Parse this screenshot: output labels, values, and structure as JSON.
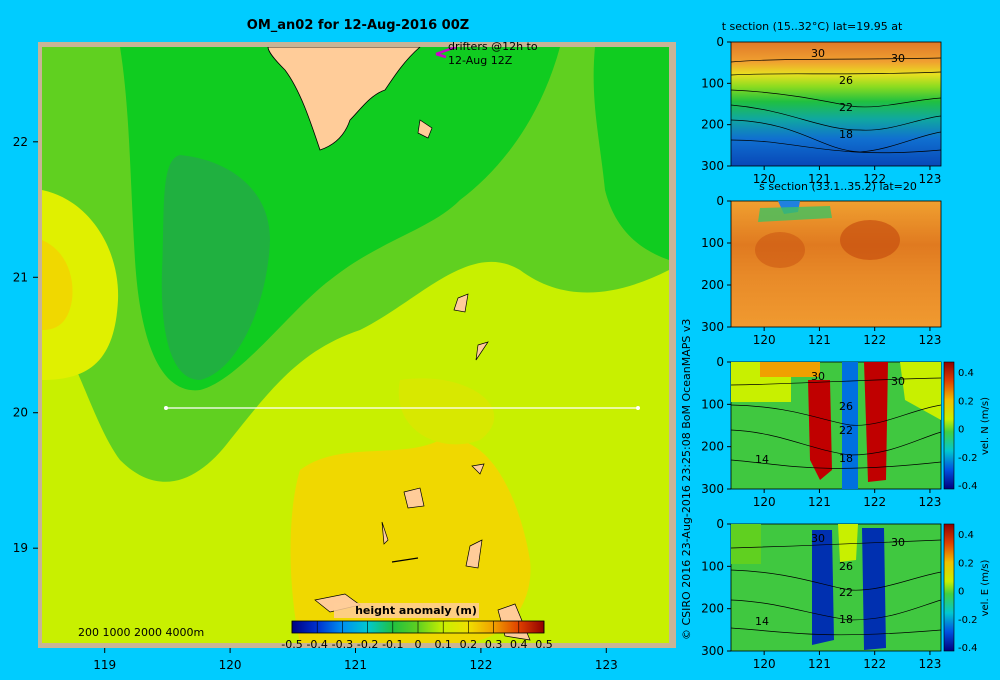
{
  "main_map": {
    "title": "OM_an02 for 12-Aug-2016 00Z",
    "drifters_note": [
      "drifters @12h to",
      "12-Aug 12Z"
    ],
    "depth_legend": "200  1000  2000  4000m",
    "colorbar_label": "height anomaly (m)",
    "colorbar_ticks": [
      "-0.5",
      "-0.4",
      "-0.3",
      "-0.2",
      "-0.1",
      "0",
      "0.1",
      "0.2",
      "0.3",
      "0.4",
      "0.5"
    ],
    "colors": {
      "land": "#ffcc99",
      "shelf": "#c8b496",
      "frame": "#c8b496"
    }
  },
  "credit": "© CSIRO 2016   23-Aug-2016 23:25:08 BoM OceanMAPS v3",
  "chart_data": [
    {
      "type": "heatmap",
      "title": "OM_an02 for 12-Aug-2016 00Z",
      "x": {
        "ticks": [
          119,
          120,
          121,
          122,
          123
        ],
        "range": [
          118.5,
          123.5
        ]
      },
      "y": {
        "ticks": [
          19,
          20,
          21,
          22
        ],
        "range": [
          18.3,
          22.7
        ]
      },
      "section_line": {
        "lat": 20,
        "lon_start": 119.5,
        "lon_end": 123.2
      },
      "colorbar": {
        "label": "height anomaly (m)",
        "range": [
          -0.5,
          0.5
        ]
      }
    },
    {
      "type": "heatmap",
      "title": "t section (15..32°C) lat=19.95 at",
      "x": {
        "ticks": [
          120,
          121,
          122,
          123
        ],
        "range": [
          119.4,
          123.2
        ]
      },
      "y": {
        "ticks": [
          0,
          100,
          200,
          300
        ],
        "range": [
          0,
          300
        ]
      },
      "contour_labels": [
        "30",
        "30",
        "26",
        "22",
        "18"
      ]
    },
    {
      "type": "heatmap",
      "title": "s section (33.1..35.2) lat=20",
      "x": {
        "ticks": [
          120,
          121,
          122,
          123
        ],
        "range": [
          119.4,
          123.2
        ]
      },
      "y": {
        "ticks": [
          0,
          100,
          200,
          300
        ],
        "range": [
          0,
          300
        ]
      }
    },
    {
      "type": "heatmap",
      "title": "",
      "x": {
        "ticks": [
          120,
          121,
          122,
          123
        ],
        "range": [
          119.4,
          123.2
        ]
      },
      "y": {
        "ticks": [
          0,
          100,
          200,
          300
        ],
        "range": [
          0,
          300
        ]
      },
      "contour_labels": [
        "30",
        "30",
        "26",
        "22",
        "14",
        "18"
      ],
      "colorbar": {
        "label": "vel. N (m/s)",
        "ticks": [
          "0.4",
          "0.2",
          "0",
          "-0.2",
          "-0.4"
        ],
        "range": [
          -0.4,
          0.4
        ]
      }
    },
    {
      "type": "heatmap",
      "title": "",
      "x": {
        "ticks": [
          120,
          121,
          122,
          123
        ],
        "range": [
          119.4,
          123.2
        ]
      },
      "y": {
        "ticks": [
          0,
          100,
          200,
          300
        ],
        "range": [
          0,
          300
        ]
      },
      "contour_labels": [
        "30",
        "30",
        "26",
        "22",
        "14",
        "18"
      ],
      "colorbar": {
        "label": "vel. E (m/s)",
        "ticks": [
          "0.4",
          "0.2",
          "0",
          "-0.2",
          "-0.4"
        ],
        "range": [
          -0.4,
          0.4
        ]
      }
    }
  ]
}
